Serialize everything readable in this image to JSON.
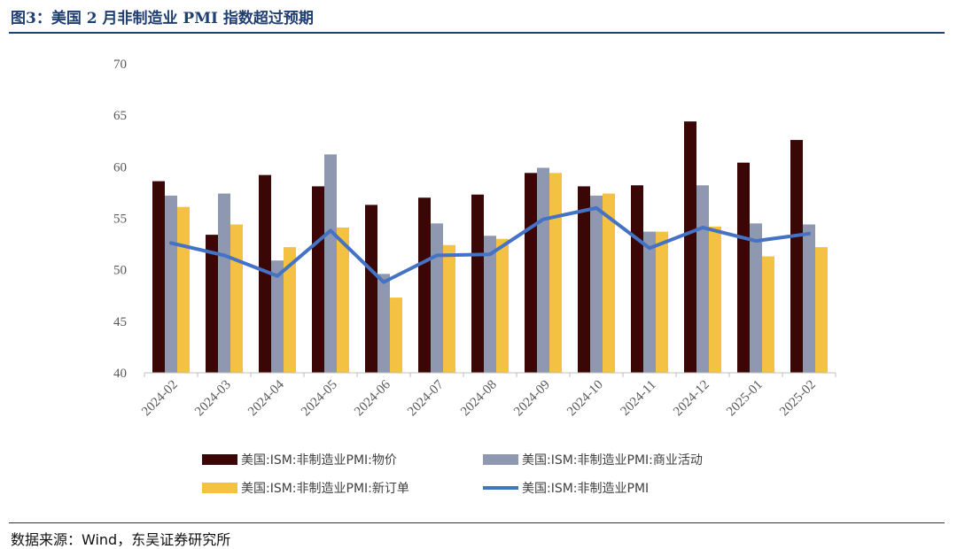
{
  "header": {
    "title": "图3：美国 2 月非制造业 PMI 指数超过预期"
  },
  "footer": {
    "source": "数据来源：Wind，东吴证券研究所"
  },
  "colors": {
    "prices": "#3a0606",
    "business": "#8e98b0",
    "orders": "#f4c242",
    "pmi": "#4472c4"
  },
  "chart_data": {
    "type": "bar",
    "categories": [
      "2024-02",
      "2024-03",
      "2024-04",
      "2024-05",
      "2024-06",
      "2024-07",
      "2024-08",
      "2024-09",
      "2024-10",
      "2024-11",
      "2024-12",
      "2025-01",
      "2025-02"
    ],
    "ylim": [
      40,
      70
    ],
    "yticks": [
      40,
      45,
      50,
      55,
      60,
      65,
      70
    ],
    "series": [
      {
        "name": "美国:ISM:非制造业PMI:物价",
        "type": "bar",
        "values": [
          58.6,
          53.4,
          59.2,
          58.1,
          56.3,
          57.0,
          57.3,
          59.4,
          58.1,
          58.2,
          64.4,
          60.4,
          62.6
        ]
      },
      {
        "name": "美国:ISM:非制造业PMI:商业活动",
        "type": "bar",
        "values": [
          57.2,
          57.4,
          50.9,
          61.2,
          49.6,
          54.5,
          53.3,
          59.9,
          57.2,
          53.7,
          58.2,
          54.5,
          54.4
        ]
      },
      {
        "name": "美国:ISM:非制造业PMI:新订单",
        "type": "bar",
        "values": [
          56.1,
          54.4,
          52.2,
          54.1,
          47.3,
          52.4,
          53.0,
          59.4,
          57.4,
          53.7,
          54.2,
          51.3,
          52.2
        ]
      },
      {
        "name": "美国:ISM:非制造业PMI",
        "type": "line",
        "values": [
          52.6,
          51.4,
          49.4,
          53.8,
          48.8,
          51.4,
          51.5,
          54.9,
          56.0,
          52.1,
          54.1,
          52.8,
          53.5
        ]
      }
    ],
    "legend": "bottom"
  }
}
